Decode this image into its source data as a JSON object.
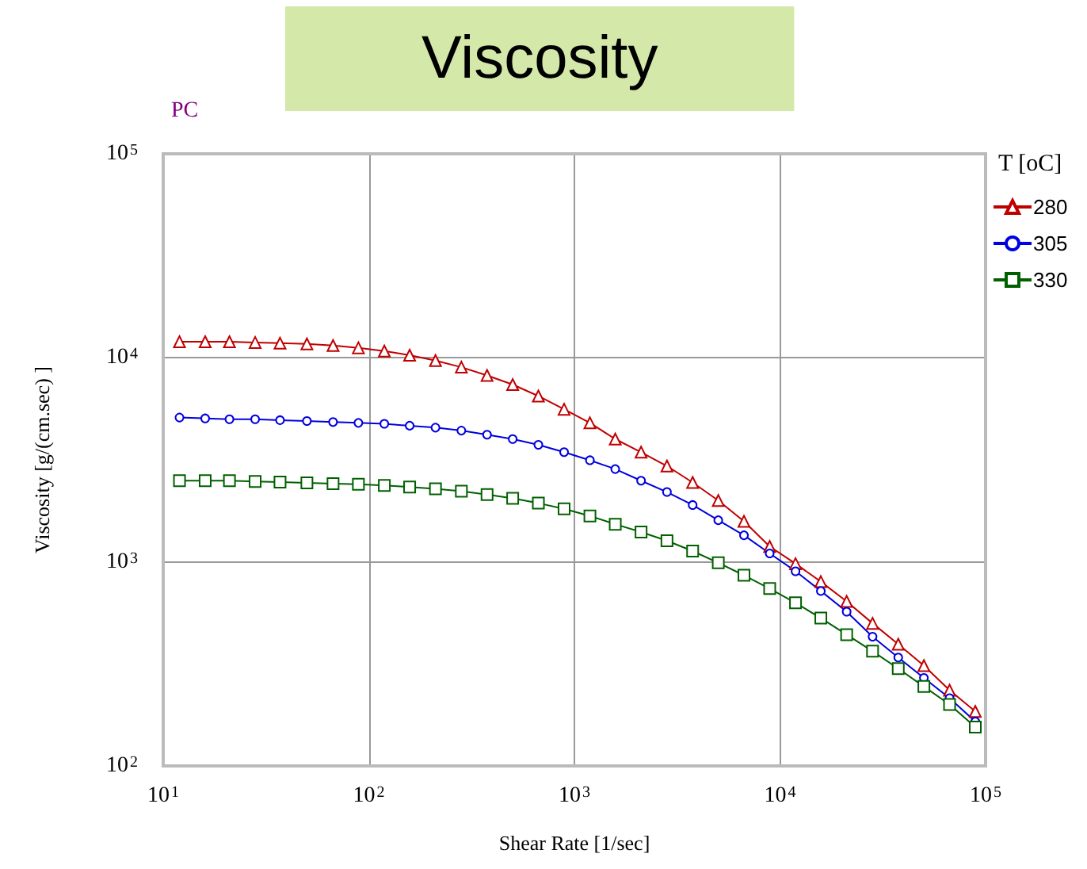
{
  "chart_data": {
    "type": "line",
    "title": "Viscosity",
    "xlabel": "Shear Rate [1/sec]",
    "ylabel": "Viscosity [g/(cm.sec) ]",
    "legend_title": "T [oC]",
    "annotations": [
      "PC"
    ],
    "log": "xy",
    "grid": true,
    "legend": "right",
    "line_style": "solid",
    "xlim": [
      10,
      100000
    ],
    "ylim": [
      100,
      100000
    ],
    "xticks": [
      {
        "value": 10,
        "label": "10$^{1}$"
      },
      {
        "value": 100,
        "label": "10$^{2}$"
      },
      {
        "value": 1000,
        "label": "10$^{3}$"
      },
      {
        "value": 10000,
        "label": "10$^{4}$"
      },
      {
        "value": 100000,
        "label": "10$^{5}$"
      }
    ],
    "yticks": [
      {
        "value": 100,
        "label": "10$^{2}$"
      },
      {
        "value": 1000,
        "label": "10$^{3}$"
      },
      {
        "value": 10000,
        "label": "10$^{4}$"
      },
      {
        "value": 100000,
        "label": "10$^{5}$"
      }
    ],
    "x": [
      12,
      16,
      21,
      28,
      37,
      50,
      67,
      89,
      119,
      158,
      211,
      282,
      376,
      501,
      668,
      891,
      1190,
      1580,
      2110,
      2820,
      3760,
      5010,
      6680,
      8910,
      11900,
      15800,
      21100,
      28200,
      37600,
      50100,
      66800,
      89100
    ],
    "series": [
      {
        "name": "280",
        "color": "#c00000",
        "marker": "triangle",
        "values": [
          12000,
          12000,
          12000,
          11900,
          11800,
          11700,
          11500,
          11200,
          10800,
          10300,
          9700,
          9000,
          8200,
          7400,
          6500,
          5600,
          4800,
          4000,
          3450,
          2950,
          2450,
          2000,
          1580,
          1190,
          980,
          800,
          640,
          500,
          395,
          310,
          235,
          185
        ]
      },
      {
        "name": "305",
        "color": "#0000e0",
        "marker": "circle",
        "values": [
          5100,
          5050,
          5000,
          5000,
          4950,
          4900,
          4850,
          4800,
          4750,
          4650,
          4550,
          4400,
          4200,
          4000,
          3750,
          3450,
          3150,
          2850,
          2500,
          2200,
          1900,
          1600,
          1350,
          1100,
          900,
          720,
          570,
          430,
          340,
          270,
          215,
          165
        ]
      },
      {
        "name": "330",
        "color": "#006000",
        "marker": "square",
        "values": [
          2500,
          2500,
          2500,
          2480,
          2460,
          2440,
          2420,
          2400,
          2370,
          2330,
          2280,
          2220,
          2140,
          2050,
          1940,
          1820,
          1680,
          1530,
          1400,
          1270,
          1130,
          990,
          860,
          740,
          630,
          530,
          440,
          365,
          300,
          245,
          200,
          155
        ]
      }
    ]
  }
}
